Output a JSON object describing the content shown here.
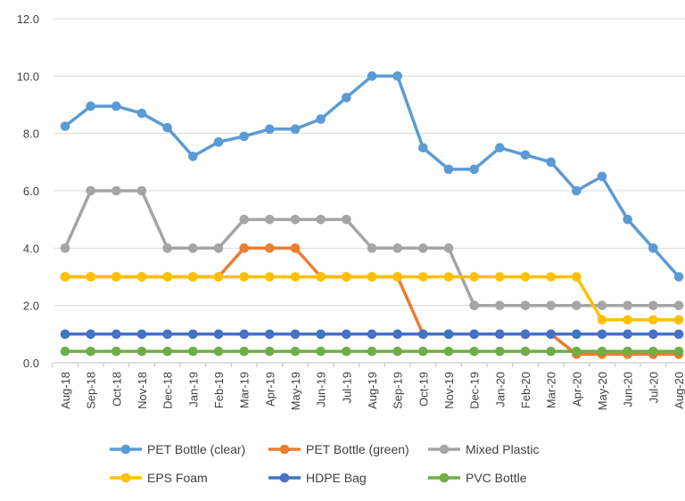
{
  "chart_data": {
    "type": "line",
    "categories": [
      "Aug-18",
      "Sep-18",
      "Oct-18",
      "Nov-18",
      "Dec-18",
      "Jan-19",
      "Feb-19",
      "Mar-19",
      "Apr-19",
      "May-19",
      "Jun-19",
      "Jul-19",
      "Aug-19",
      "Sep-19",
      "Oct-19",
      "Nov-19",
      "Dec-19",
      "Jan-20",
      "Feb-20",
      "Mar-20",
      "Apr-20",
      "May-20",
      "Jun-20",
      "Jul-20",
      "Aug-20"
    ],
    "ylim": [
      0,
      12
    ],
    "yticks": [
      0,
      2,
      4,
      6,
      8,
      10,
      12
    ],
    "ytick_labels": [
      "0.0",
      "2.0",
      "4.0",
      "6.0",
      "8.0",
      "10.0",
      "12.0"
    ],
    "grid": true,
    "legend_position": "bottom",
    "series": [
      {
        "name": "PET Bottle (clear)",
        "color": "#5B9BD5",
        "values": [
          8.25,
          8.95,
          8.95,
          8.7,
          8.2,
          7.2,
          7.7,
          7.9,
          8.15,
          8.15,
          8.5,
          9.25,
          10,
          10,
          7.5,
          6.75,
          6.75,
          7.5,
          7.25,
          7,
          6,
          6.5,
          5,
          4,
          3
        ]
      },
      {
        "name": "PET Bottle (green)",
        "color": "#ED7D31",
        "values": [
          3,
          3,
          3,
          3,
          3,
          3,
          3,
          4,
          4,
          4,
          3,
          3,
          3,
          3,
          1,
          1,
          1,
          1,
          1,
          1,
          0.3,
          0.3,
          0.3,
          0.3,
          0.3
        ]
      },
      {
        "name": "Mixed Plastic",
        "color": "#A5A5A5",
        "values": [
          4,
          6,
          6,
          6,
          4,
          4,
          4,
          5,
          5,
          5,
          5,
          5,
          4,
          4,
          4,
          4,
          2,
          2,
          2,
          2,
          2,
          2,
          2,
          2,
          2
        ]
      },
      {
        "name": "EPS Foam",
        "color": "#FFC000",
        "values": [
          3,
          3,
          3,
          3,
          3,
          3,
          3,
          3,
          3,
          3,
          3,
          3,
          3,
          3,
          3,
          3,
          3,
          3,
          3,
          3,
          3,
          1.5,
          1.5,
          1.5,
          1.5
        ]
      },
      {
        "name": "HDPE Bag",
        "color": "#4472C4",
        "values": [
          1,
          1,
          1,
          1,
          1,
          1,
          1,
          1,
          1,
          1,
          1,
          1,
          1,
          1,
          1,
          1,
          1,
          1,
          1,
          1,
          1,
          1,
          1,
          1,
          1
        ]
      },
      {
        "name": "PVC Bottle",
        "color": "#70AD47",
        "values": [
          0.4,
          0.4,
          0.4,
          0.4,
          0.4,
          0.4,
          0.4,
          0.4,
          0.4,
          0.4,
          0.4,
          0.4,
          0.4,
          0.4,
          0.4,
          0.4,
          0.4,
          0.4,
          0.4,
          0.4,
          0.4,
          0.4,
          0.4,
          0.4,
          0.4
        ]
      }
    ]
  }
}
